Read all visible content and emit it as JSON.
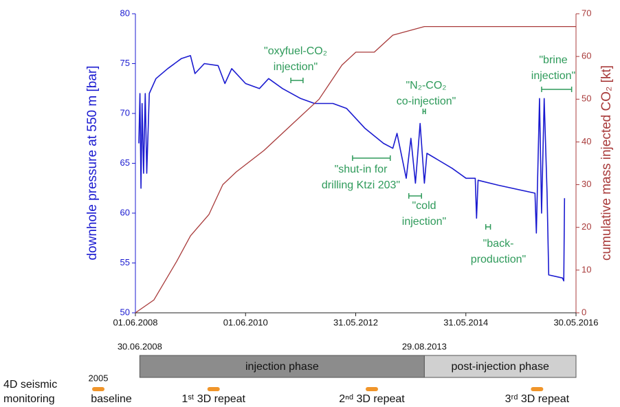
{
  "chart_data": {
    "type": "line",
    "y_label": "downhole pressure at 550 m [bar]",
    "y2_label": "cumulative mass injected CO₂ [kt]",
    "xlim": [
      "2008-06-01",
      "2016-05-30"
    ],
    "xticks": [
      {
        "value": "2008-06-01",
        "label": "01.06.2008"
      },
      {
        "value": "2010-06-01",
        "label": "01.06.2010"
      },
      {
        "value": "2012-05-31",
        "label": "31.05.2012"
      },
      {
        "value": "2014-05-31",
        "label": "31.05.2014"
      },
      {
        "value": "2016-05-30",
        "label": "30.05.2016"
      }
    ],
    "ylim": [
      50,
      80
    ],
    "yticks": [
      50,
      55,
      60,
      65,
      70,
      75,
      80
    ],
    "y2lim": [
      0,
      70
    ],
    "y2ticks": [
      0,
      10,
      20,
      30,
      40,
      50,
      60,
      70
    ],
    "series": [
      {
        "name": "downhole pressure",
        "color": "#1a1ad0",
        "x": [
          "2008-06-24",
          "2008-07-01",
          "2008-07-08",
          "2008-07-15",
          "2008-07-25",
          "2008-08-05",
          "2008-08-15",
          "2008-09-01",
          "2008-10-15",
          "2009-01-01",
          "2009-04-01",
          "2009-06-01",
          "2009-07-01",
          "2009-09-01",
          "2009-12-01",
          "2010-01-15",
          "2010-03-01",
          "2010-06-01",
          "2010-09-01",
          "2010-11-01",
          "2011-02-01",
          "2011-06-01",
          "2011-09-01",
          "2012-01-01",
          "2012-04-01",
          "2012-08-01",
          "2012-12-01",
          "2013-02-01",
          "2013-03-01",
          "2013-05-01",
          "2013-06-01",
          "2013-07-01",
          "2013-08-01",
          "2013-08-29",
          "2013-09-15",
          "2014-03-01",
          "2014-06-01",
          "2014-08-01",
          "2014-08-10",
          "2014-08-20",
          "2015-01-01",
          "2015-09-01",
          "2015-09-10",
          "2015-10-01",
          "2015-10-15",
          "2015-11-01",
          "2015-11-20",
          "2015-12-01",
          "2016-03-01",
          "2016-03-10",
          "2016-03-15"
        ],
        "values": [
          67,
          72,
          62.5,
          71,
          64,
          72,
          64,
          72,
          73.5,
          74.5,
          75.5,
          75.8,
          74,
          75,
          74.8,
          73,
          74.5,
          73,
          72.5,
          73.5,
          72.5,
          71.5,
          71,
          71,
          70.5,
          68.5,
          67,
          66.5,
          68,
          63.5,
          67.5,
          63,
          69,
          63,
          66,
          64.5,
          63.5,
          63.5,
          59.5,
          63.3,
          62.8,
          62,
          58,
          71.5,
          60,
          71.5,
          62,
          53.8,
          53.5,
          53.2,
          61.5
        ]
      },
      {
        "name": "cumulative mass injected CO₂",
        "color": "#a83a3a",
        "axis": "y2",
        "x": [
          "2008-06-01",
          "2008-10-01",
          "2009-03-01",
          "2009-06-01",
          "2009-10-01",
          "2010-01-01",
          "2010-04-01",
          "2010-10-01",
          "2011-04-01",
          "2011-10-01",
          "2012-03-01",
          "2012-06-01",
          "2012-10-01",
          "2013-02-01",
          "2013-08-29",
          "2016-05-30"
        ],
        "values": [
          0,
          3,
          12,
          18,
          23,
          30,
          33,
          38,
          44,
          50,
          58,
          61,
          61,
          65,
          67,
          67
        ]
      }
    ],
    "annotations": [
      {
        "text": [
          "\"oxyfuel-CO₂",
          "injection\""
        ],
        "range": [
          "2011-03-28",
          "2011-06-17"
        ]
      },
      {
        "text": [
          "\"N₂-CO₂",
          "co-injection\""
        ],
        "range": [
          "2013-08-20",
          "2013-09-05"
        ]
      },
      {
        "text": [
          "\"brine",
          "injection\""
        ],
        "range": [
          "2015-10-15",
          "2016-05-01"
        ]
      },
      {
        "text": [
          "\"shut-in for",
          "drilling Ktzi 203\""
        ],
        "range": [
          "2012-05-10",
          "2013-01-15"
        ]
      },
      {
        "text": [
          "\"cold",
          "injection\""
        ],
        "range": [
          "2013-05-18",
          "2013-08-10"
        ]
      },
      {
        "text": [
          "\"back-",
          "production\""
        ],
        "range": [
          "2014-10-10",
          "2014-11-10"
        ]
      }
    ],
    "phases": [
      {
        "name": "injection phase",
        "start": {
          "value": "2008-06-30",
          "label": "30.06.2008"
        },
        "color": "#8c8c8c"
      },
      {
        "name": "post-injection phase",
        "start": {
          "value": "2013-08-29",
          "label": "29.08.2013"
        },
        "color": "#d0d0d0"
      }
    ],
    "monitoring": {
      "label": [
        "4D seismic",
        "monitoring"
      ],
      "events": [
        {
          "name": "baseline",
          "year": "2005"
        },
        {
          "name": "1ˢᵗ 3D repeat",
          "date": "2009-11-01"
        },
        {
          "name": "2ⁿᵈ 3D repeat",
          "date": "2012-09-15"
        },
        {
          "name": "3ʳᵈ 3D repeat",
          "date": "2015-09-15"
        }
      ],
      "color": "#f0952a"
    }
  }
}
